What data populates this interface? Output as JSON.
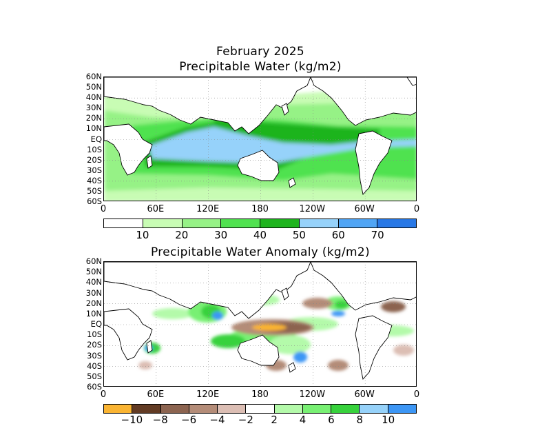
{
  "titles": {
    "date": "February 2025",
    "top": "Precipitable Water (kg/m2)",
    "bottom": "Precipitable Water Anomaly (kg/m2)"
  },
  "lat_ticks": [
    "60N",
    "50N",
    "40N",
    "30N",
    "20N",
    "10N",
    "EQ",
    "10S",
    "20S",
    "30S",
    "40S",
    "50S",
    "60S"
  ],
  "lon_ticks": [
    "0",
    "60E",
    "120E",
    "180",
    "120W",
    "60W",
    "0"
  ],
  "pw_scale": {
    "colors": [
      "#ffffff",
      "#c8fcb4",
      "#96f286",
      "#50e250",
      "#1eb41e",
      "#96d2fa",
      "#50a5f5",
      "#2878e6"
    ],
    "labels": [
      "10",
      "20",
      "30",
      "40",
      "50",
      "60",
      "70"
    ]
  },
  "anom_scale": {
    "colors": [
      "#fab432",
      "#623b24",
      "#8c6450",
      "#b48c78",
      "#dcbeb4",
      "#ffffff",
      "#b4faaa",
      "#78f073",
      "#37d23c",
      "#96d2fa",
      "#3c96f5"
    ],
    "labels": [
      "−10",
      "−8",
      "−6",
      "−4",
      "−2",
      "2",
      "4",
      "6",
      "8",
      "10"
    ]
  }
}
